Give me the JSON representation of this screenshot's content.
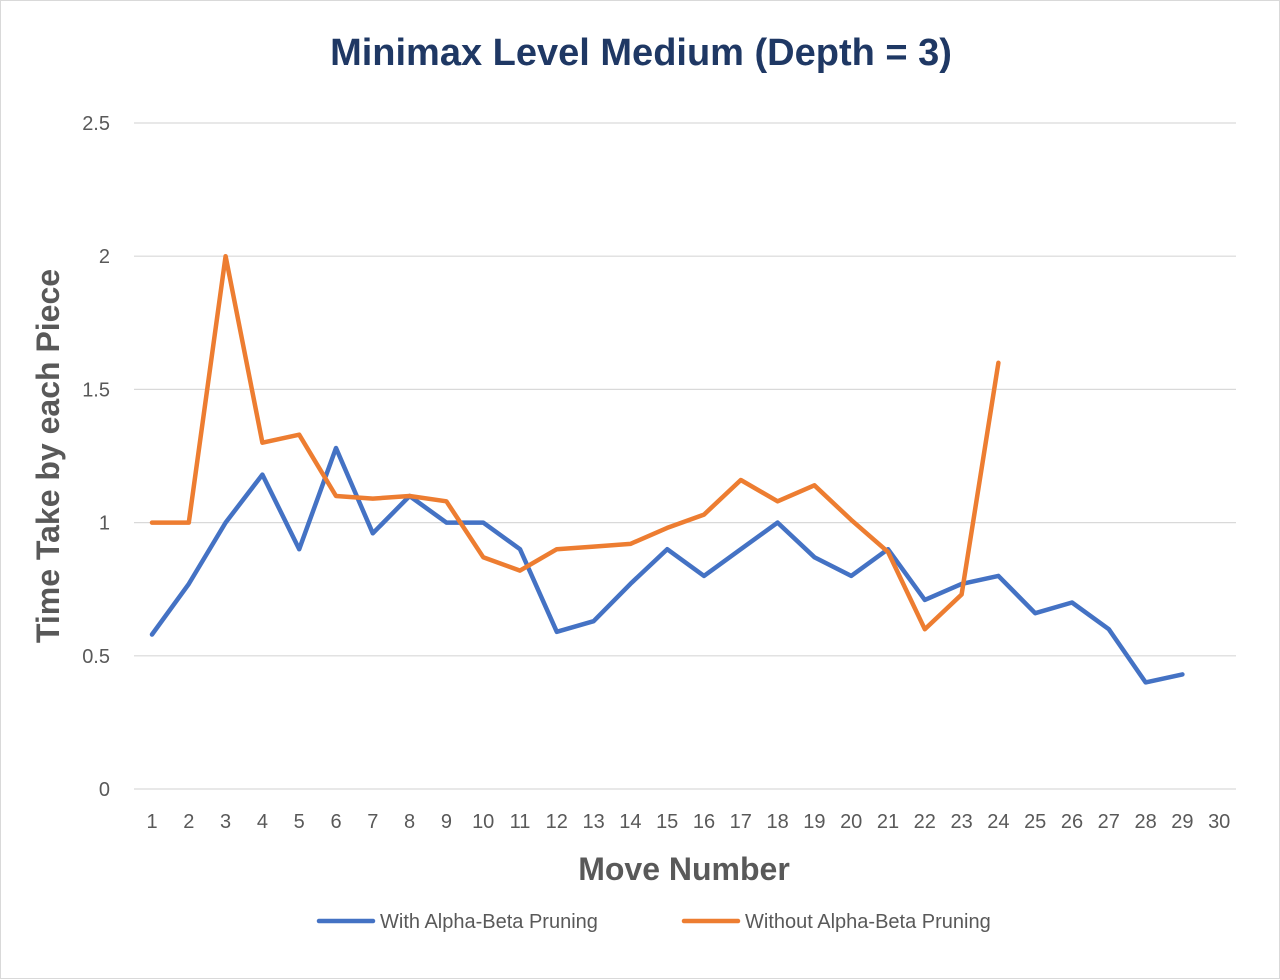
{
  "colors": {
    "title": "#1f3864",
    "gridline": "#d9d9d9",
    "axis_text": "#595959"
  },
  "chart_data": {
    "type": "line",
    "title": "Minimax Level Medium (Depth = 3)",
    "xlabel": "Move Number",
    "ylabel": "Time Take by each Piece",
    "categories": [
      "1",
      "2",
      "3",
      "4",
      "5",
      "6",
      "7",
      "8",
      "9",
      "10",
      "11",
      "12",
      "13",
      "14",
      "15",
      "16",
      "17",
      "18",
      "19",
      "20",
      "21",
      "22",
      "23",
      "24",
      "25",
      "26",
      "27",
      "28",
      "29",
      "30"
    ],
    "ylim": [
      0,
      2.5
    ],
    "yticks": [
      0,
      0.5,
      1,
      1.5,
      2,
      2.5
    ],
    "ytick_labels": [
      "0",
      "0.5",
      "1",
      "1.5",
      "2",
      "2.5"
    ],
    "grid": true,
    "legend_position": "bottom",
    "series": [
      {
        "name": "With Alpha-Beta Pruning",
        "color": "#4472c4",
        "values": [
          0.58,
          0.77,
          1.0,
          1.18,
          0.9,
          1.28,
          0.96,
          1.1,
          1.0,
          1.0,
          0.9,
          0.59,
          0.63,
          0.77,
          0.9,
          0.8,
          0.9,
          1.0,
          0.87,
          0.8,
          0.9,
          0.71,
          0.77,
          0.8,
          0.66,
          0.7,
          0.6,
          0.4,
          0.43,
          null
        ]
      },
      {
        "name": "Without Alpha-Beta Pruning",
        "color": "#ed7d31",
        "values": [
          1.0,
          1.0,
          2.0,
          1.3,
          1.33,
          1.1,
          1.09,
          1.1,
          1.08,
          0.87,
          0.82,
          0.9,
          0.91,
          0.92,
          0.98,
          1.03,
          1.16,
          1.08,
          1.14,
          1.01,
          0.89,
          0.6,
          0.73,
          1.6,
          null,
          null,
          null,
          null,
          null,
          null
        ]
      }
    ]
  }
}
